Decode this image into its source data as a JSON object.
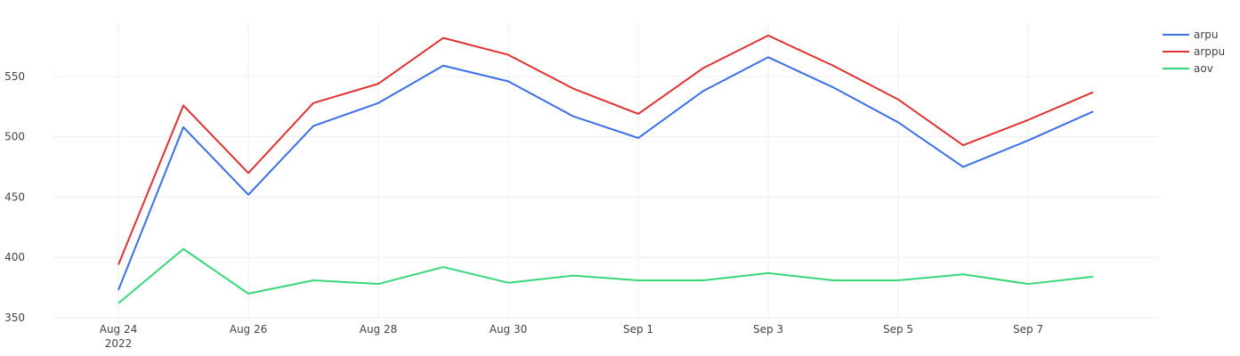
{
  "chart_data": {
    "type": "line",
    "title": "",
    "xlabel": "",
    "ylabel": "",
    "x": [
      "2022-08-24",
      "2022-08-25",
      "2022-08-26",
      "2022-08-27",
      "2022-08-28",
      "2022-08-29",
      "2022-08-30",
      "2022-08-31",
      "2022-09-01",
      "2022-09-02",
      "2022-09-03",
      "2022-09-04",
      "2022-09-05",
      "2022-09-06",
      "2022-09-07",
      "2022-09-08"
    ],
    "x_ticks": [
      {
        "date": "2022-08-24",
        "label": "Aug 24",
        "sublabel": "2022"
      },
      {
        "date": "2022-08-26",
        "label": "Aug 26"
      },
      {
        "date": "2022-08-28",
        "label": "Aug 28"
      },
      {
        "date": "2022-08-30",
        "label": "Aug 30"
      },
      {
        "date": "2022-09-01",
        "label": "Sep 1"
      },
      {
        "date": "2022-09-03",
        "label": "Sep 3"
      },
      {
        "date": "2022-09-05",
        "label": "Sep 5"
      },
      {
        "date": "2022-09-07",
        "label": "Sep 7"
      }
    ],
    "xlim": [
      "2022-08-23",
      "2022-09-09"
    ],
    "ylim": [
      350,
      595
    ],
    "y_ticks": [
      350,
      400,
      450,
      500,
      550
    ],
    "grid": true,
    "legend_position": "top-right",
    "series": [
      {
        "name": "arpu",
        "color": "#3b6fe8",
        "values": [
          373,
          508,
          452,
          509,
          528,
          559,
          546,
          517,
          499,
          538,
          566,
          541,
          512,
          475,
          497,
          521
        ]
      },
      {
        "name": "arppu",
        "color": "#e03232",
        "values": [
          394,
          526,
          470,
          528,
          544,
          582,
          568,
          540,
          519,
          557,
          584,
          559,
          531,
          493,
          514,
          537
        ]
      },
      {
        "name": "aov",
        "color": "#37d67a",
        "values": [
          362,
          407,
          370,
          381,
          378,
          392,
          379,
          385,
          381,
          381,
          387,
          381,
          381,
          386,
          378,
          384
        ]
      }
    ]
  }
}
